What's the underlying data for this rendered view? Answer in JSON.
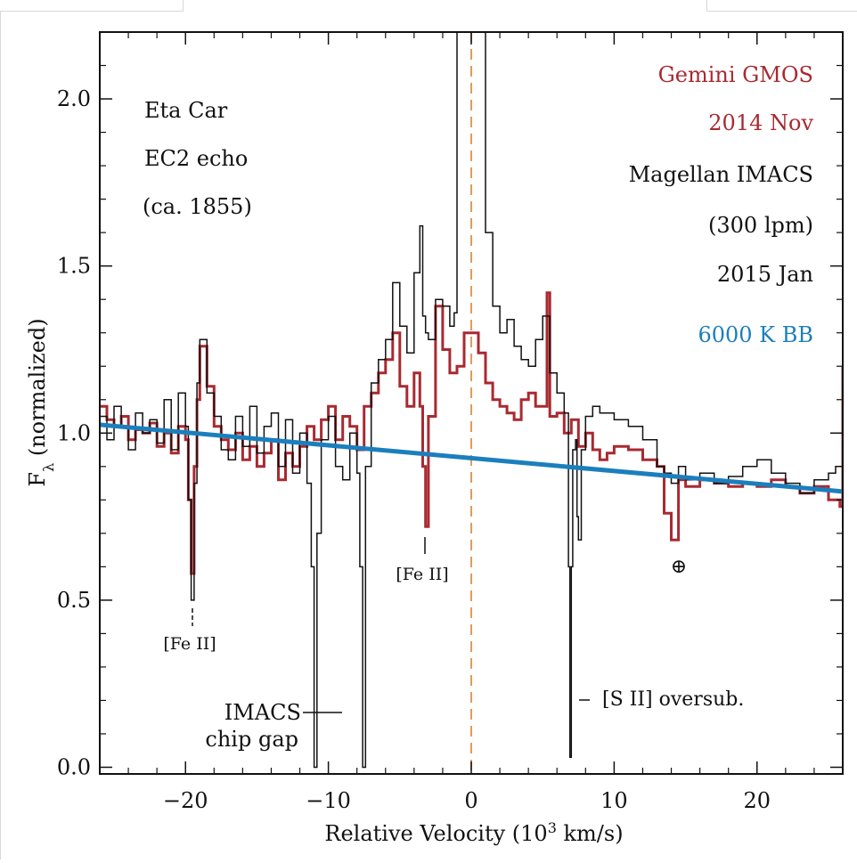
{
  "chart_data": {
    "type": "line",
    "title": "",
    "xlabel": "Relative Velocity (10",
    "xlabel_sup": "3",
    "xlabel_end": " km/s)",
    "ylabel_main": "F",
    "ylabel_sub": "λ",
    "ylabel_rest": " (normalized)",
    "xlim": [
      -26,
      26
    ],
    "ylim": [
      -0.02,
      2.2
    ],
    "x_ticks": [
      -20,
      -10,
      0,
      10,
      20
    ],
    "x_tick_labels": [
      "−20",
      "−10",
      "0",
      "10",
      "20"
    ],
    "y_ticks": [
      0.0,
      0.5,
      1.0,
      1.5,
      2.0
    ],
    "y_tick_labels": [
      "0.0",
      "0.5",
      "1.0",
      "1.5",
      "2.0"
    ],
    "grid": false,
    "reference_line": {
      "x": 0,
      "style": "dashed",
      "color": "#e39a59"
    },
    "legend": {
      "placement": "top-right",
      "entries": [
        {
          "text": "Gemini GMOS",
          "color": "#a82a31"
        },
        {
          "text": "2014 Nov",
          "color": "#a82a31"
        },
        {
          "text": "Magellan IMACS",
          "color": "#111111"
        },
        {
          "text": "(300 lpm)",
          "color": "#111111"
        },
        {
          "text": "2015 Jan",
          "color": "#111111"
        },
        {
          "text": "6000 K BB",
          "color": "#1b7fbd"
        }
      ]
    },
    "object_label": [
      "Eta Car",
      "EC2 echo",
      "(ca. 1855)"
    ],
    "annotations": {
      "fe2_left": "[Fe II]",
      "fe2_mid": "[Fe II]",
      "telluric": "⊕",
      "chip_gap_line1": "IMACS",
      "chip_gap_line2": "chip gap",
      "s2": "[S II] oversub."
    },
    "series": [
      {
        "name": "Magellan IMACS 2015 Jan",
        "color": "#111111",
        "x": [
          -26,
          -25.5,
          -25,
          -24.5,
          -24,
          -23.5,
          -23,
          -22.5,
          -22,
          -21.5,
          -21,
          -20.5,
          -20,
          -19.8,
          -19.6,
          -19.4,
          -19.2,
          -19,
          -18.5,
          -18,
          -17.5,
          -17,
          -16.5,
          -16,
          -15.5,
          -15,
          -14.5,
          -14,
          -13.5,
          -13,
          -12.5,
          -12,
          -11.5,
          -11.2,
          -11.0,
          -10.8,
          -10.5,
          -10,
          -9.5,
          -9,
          -8.5,
          -8,
          -7.8,
          -7.6,
          -7.4,
          -7,
          -6.5,
          -6,
          -5.5,
          -5,
          -4.5,
          -4,
          -3.6,
          -3.4,
          -3.2,
          -3,
          -2.5,
          -2,
          -1.5,
          -1.2,
          -1.0,
          -0.8,
          -0.6,
          -0.4,
          0.4,
          0.6,
          0.8,
          1.0,
          1.5,
          2,
          2.5,
          3,
          3.5,
          4,
          4.5,
          5,
          5.5,
          6,
          6.5,
          6.8,
          6.9,
          7.0,
          7.1,
          7.3,
          7.4,
          7.5,
          7.7,
          8,
          8.5,
          9,
          10,
          11,
          12,
          13,
          13.5,
          14,
          14.5,
          15,
          16,
          17,
          18,
          19,
          20,
          21,
          22,
          23,
          24,
          25,
          25.5,
          26
        ],
        "values": [
          1.05,
          0.98,
          1.08,
          1.02,
          0.95,
          1.06,
          1.0,
          1.04,
          0.97,
          1.1,
          0.95,
          1.12,
          1.02,
          0.8,
          0.5,
          0.85,
          1.15,
          1.28,
          1.12,
          1.05,
          0.95,
          0.92,
          1.05,
          0.96,
          1.08,
          0.94,
          1.02,
          1.06,
          0.9,
          1.04,
          0.88,
          1.0,
          0.85,
          0.6,
          0.0,
          0.7,
          0.98,
          1.05,
          0.9,
          0.86,
          1.0,
          0.88,
          0.6,
          0.0,
          0.9,
          1.15,
          1.22,
          1.28,
          1.45,
          1.32,
          1.24,
          1.48,
          1.62,
          1.35,
          1.3,
          1.28,
          1.4,
          1.38,
          1.32,
          1.36,
          2.2,
          2.2,
          2.2,
          2.2,
          2.2,
          2.2,
          2.2,
          1.6,
          1.38,
          1.3,
          1.34,
          1.26,
          1.22,
          1.2,
          1.28,
          1.35,
          1.18,
          1.12,
          1.06,
          0.6,
          0.03,
          0.6,
          0.95,
          0.98,
          0.75,
          0.68,
          0.95,
          1.05,
          1.08,
          1.06,
          1.04,
          1.02,
          0.98,
          0.9,
          0.88,
          0.85,
          0.9,
          0.86,
          0.88,
          0.85,
          0.87,
          0.9,
          0.92,
          0.88,
          0.85,
          0.82,
          0.86,
          0.88,
          0.9,
          0.8
        ]
      },
      {
        "name": "Gemini GMOS 2014 Nov",
        "color": "#a82a31",
        "x": [
          -26,
          -25.5,
          -25,
          -24.5,
          -24,
          -23.5,
          -23,
          -22.5,
          -22,
          -21.5,
          -21,
          -20.5,
          -20,
          -19.8,
          -19.6,
          -19.4,
          -19.2,
          -19,
          -18.5,
          -18,
          -17.5,
          -17,
          -16.5,
          -16,
          -15.5,
          -15,
          -14.5,
          -14,
          -13.5,
          -13,
          -12.5,
          -12,
          -11.5,
          -11,
          -10.5,
          -10,
          -9.5,
          -9,
          -8.5,
          -8,
          -7.5,
          -7,
          -6.5,
          -6,
          -5.5,
          -5,
          -4.5,
          -4,
          -3.6,
          -3.4,
          -3.2,
          -3,
          -2.5,
          -2,
          -1.5,
          -1,
          -0.5,
          0.5,
          1,
          1.5,
          2,
          2.5,
          3,
          3.5,
          4,
          4.5,
          5,
          5.3,
          5.5,
          6,
          6.5,
          7,
          7.5,
          8,
          8.5,
          9,
          9.5,
          10,
          11,
          12,
          13,
          13.5,
          14,
          14.5,
          15,
          16,
          17,
          18,
          19,
          20,
          21,
          22,
          23,
          24,
          25,
          25.8,
          26
        ],
        "values": [
          1.08,
          1.04,
          1.02,
          1.05,
          0.98,
          1.01,
          1.0,
          1.03,
          0.96,
          1.0,
          0.94,
          1.02,
          0.98,
          0.8,
          0.58,
          0.9,
          1.1,
          1.26,
          1.14,
          1.02,
          0.98,
          0.95,
          1.0,
          0.92,
          0.96,
          0.9,
          0.94,
          0.98,
          0.86,
          0.94,
          0.9,
          0.96,
          1.02,
          0.98,
          1.04,
          1.08,
          0.98,
          1.05,
          1.02,
          0.95,
          1.08,
          1.12,
          1.18,
          1.22,
          1.3,
          1.14,
          1.08,
          1.18,
          1.08,
          0.9,
          0.72,
          1.05,
          1.38,
          1.25,
          1.18,
          1.2,
          1.3,
          1.24,
          1.15,
          1.1,
          1.08,
          1.06,
          1.04,
          1.1,
          1.12,
          1.08,
          1.08,
          1.42,
          1.05,
          1.06,
          1.0,
          1.04,
          0.96,
          1.0,
          0.95,
          0.92,
          0.94,
          0.96,
          0.95,
          0.92,
          0.9,
          0.76,
          0.68,
          0.86,
          0.84,
          0.86,
          0.85,
          0.84,
          0.85,
          0.84,
          0.86,
          0.84,
          0.82,
          0.84,
          0.8,
          0.78,
          1.2
        ]
      },
      {
        "name": "6000 K BB",
        "color": "#1b7fbd",
        "x": [
          -26,
          26
        ],
        "values": [
          1.025,
          0.825
        ]
      }
    ]
  }
}
